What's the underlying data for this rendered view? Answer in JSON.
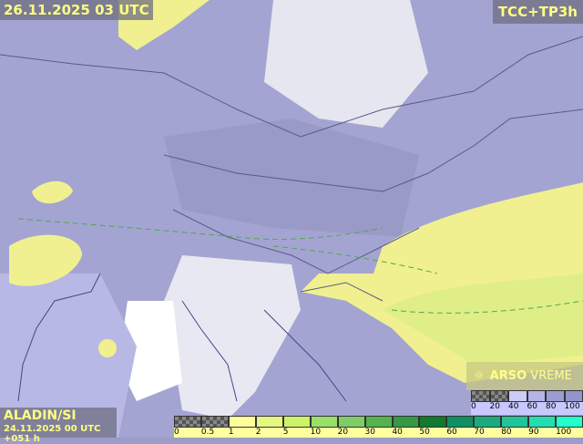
{
  "header": {
    "valid_time": "26.11.2025 03 UTC",
    "parameter": "TCC+TP3h"
  },
  "model": {
    "name": "ALADIN/SI",
    "run": "24.11.2025 00 UTC +051 h"
  },
  "brand": {
    "icon": "sun-cloud-icon",
    "name_bold": "ARSO",
    "name_light": "VREME"
  },
  "cloud_legend": {
    "ticks": [
      "0",
      "20",
      "40",
      "60",
      "80",
      "100"
    ],
    "colors": [
      "checker",
      "checker",
      "#ccccf8",
      "#b4b4e8",
      "#9c9cd4",
      "#9494cc"
    ]
  },
  "precip_legend": {
    "ticks": [
      "0",
      "0.5",
      "1",
      "2",
      "5",
      "10",
      "20",
      "30",
      "40",
      "50",
      "60",
      "70",
      "80",
      "90",
      "100"
    ],
    "colors": [
      "checker",
      "checker",
      "#ffff99",
      "#e6f780",
      "#ccf266",
      "#99e066",
      "#80cc66",
      "#55b34d",
      "#339944",
      "#117a2e",
      "#0f8f66",
      "#1aaa80",
      "#22c499",
      "#22ddb0",
      "#22ffcc"
    ]
  },
  "colors": {
    "label_text": "#ffff80",
    "precip_light": "#f0f090",
    "cloud_clear": "#ffffff"
  }
}
